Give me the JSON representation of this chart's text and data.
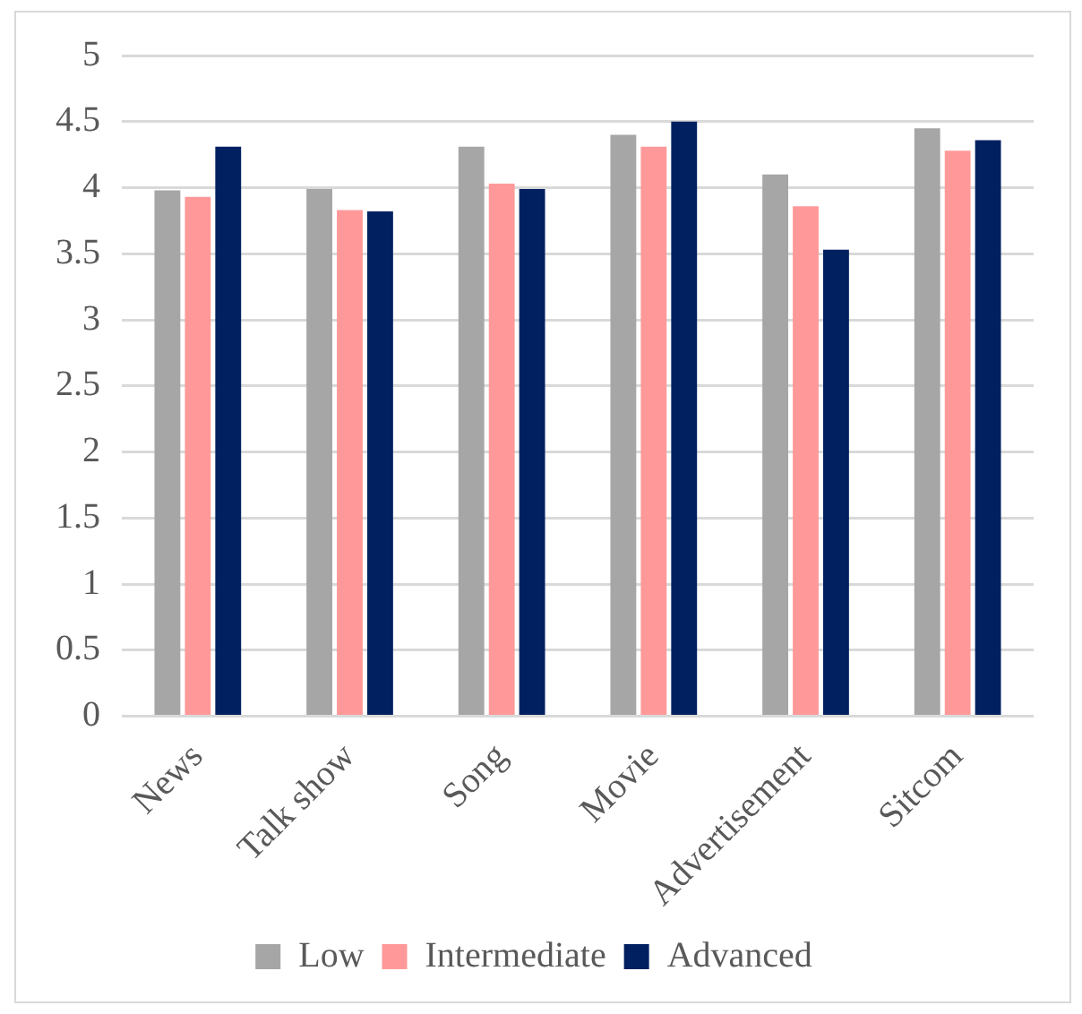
{
  "chart_data": {
    "type": "bar",
    "categories": [
      "News",
      "Talk show",
      "Song",
      "Movie",
      "Advertisement",
      "Sitcom"
    ],
    "series": [
      {
        "name": "Low",
        "color": "#a6a6a6",
        "values": [
          3.98,
          3.99,
          4.31,
          4.4,
          4.1,
          4.45
        ]
      },
      {
        "name": "Intermediate",
        "color": "#ff9999",
        "values": [
          3.93,
          3.83,
          4.03,
          4.31,
          3.86,
          4.28
        ]
      },
      {
        "name": "Advanced",
        "color": "#002060",
        "values": [
          4.31,
          3.82,
          3.99,
          4.5,
          3.53,
          4.36
        ]
      }
    ],
    "ylim": [
      0,
      5
    ],
    "yticks": [
      0,
      0.5,
      1,
      1.5,
      2,
      2.5,
      3,
      3.5,
      4,
      4.5,
      5
    ],
    "grid": "y",
    "legend": "bottom"
  }
}
